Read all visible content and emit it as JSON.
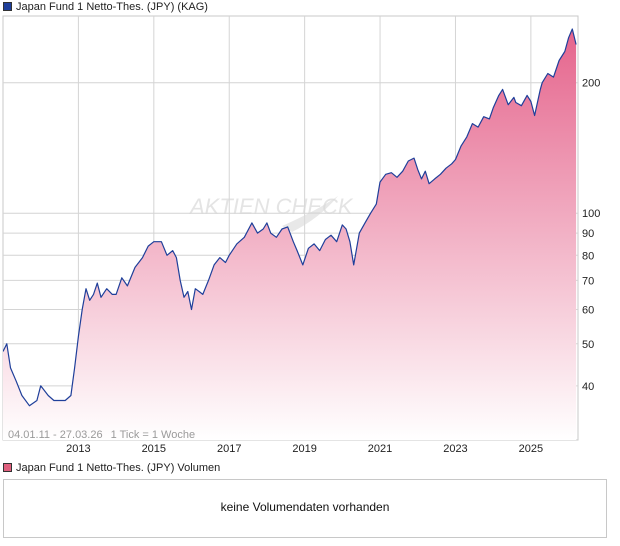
{
  "chart_data": {
    "type": "area",
    "title": "Japan Fund 1 Netto-Thes. (JPY) (KAG)",
    "scale": "log",
    "ylim": [
      30,
      285
    ],
    "xlim": [
      2011.0,
      2026.25
    ],
    "y_ticks": [
      40,
      50,
      60,
      70,
      80,
      90,
      100,
      200
    ],
    "x_ticks": [
      {
        "label": "2013",
        "x": 2013
      },
      {
        "label": "2015",
        "x": 2015
      },
      {
        "label": "2017",
        "x": 2017
      },
      {
        "label": "2019",
        "x": 2019
      },
      {
        "label": "2021",
        "x": 2021
      },
      {
        "label": "2023",
        "x": 2023
      },
      {
        "label": "2025",
        "x": 2025
      }
    ],
    "range_label": "04.01.11 - 27.03.26",
    "tick_label": "1 Tick = 1 Woche",
    "watermark": "AKTIEN CHECK",
    "grid": true,
    "colors": {
      "line": "#1f3f9a",
      "fill_top": "#e5648c",
      "fill_bottom": "#ffffff",
      "grid": "#d4d4d4"
    },
    "series": [
      {
        "x": [
          2011.0,
          2011.1,
          2011.2,
          2011.35,
          2011.5,
          2011.7,
          2011.9,
          2012.0,
          2012.2,
          2012.35,
          2012.5,
          2012.65,
          2012.8,
          2012.9,
          2013.0,
          2013.1,
          2013.2,
          2013.3,
          2013.4,
          2013.5,
          2013.6,
          2013.75,
          2013.9,
          2014.0,
          2014.15,
          2014.3,
          2014.5,
          2014.7,
          2014.85,
          2015.0,
          2015.2,
          2015.35,
          2015.5,
          2015.6,
          2015.7,
          2015.8,
          2015.9,
          2016.0,
          2016.1,
          2016.2,
          2016.3,
          2016.45,
          2016.6,
          2016.75,
          2016.9,
          2017.0,
          2017.2,
          2017.4,
          2017.6,
          2017.75,
          2017.9,
          2018.0,
          2018.1,
          2018.25,
          2018.4,
          2018.55,
          2018.7,
          2018.8,
          2018.95,
          2019.1,
          2019.25,
          2019.4,
          2019.55,
          2019.7,
          2019.85,
          2020.0,
          2020.1,
          2020.2,
          2020.3,
          2020.45,
          2020.6,
          2020.75,
          2020.9,
          2021.0,
          2021.15,
          2021.3,
          2021.45,
          2021.6,
          2021.75,
          2021.9,
          2022.0,
          2022.1,
          2022.2,
          2022.3,
          2022.45,
          2022.6,
          2022.75,
          2022.9,
          2023.0,
          2023.15,
          2023.3,
          2023.45,
          2023.6,
          2023.75,
          2023.9,
          2024.0,
          2024.15,
          2024.25,
          2024.4,
          2024.55,
          2024.6,
          2024.75,
          2024.9,
          2025.0,
          2025.1,
          2025.25,
          2025.3,
          2025.45,
          2025.6,
          2025.75,
          2025.9,
          2026.0,
          2026.1,
          2026.2
        ],
        "values": [
          48,
          50,
          44,
          41,
          38,
          36,
          37,
          40,
          38,
          37,
          37,
          37,
          38,
          44,
          52,
          60,
          67,
          63,
          65,
          69,
          64,
          67,
          65,
          65,
          71,
          68,
          75,
          79,
          84,
          86,
          86,
          80,
          82,
          79,
          70,
          64,
          66,
          60,
          67,
          66,
          65,
          70,
          76,
          79,
          77,
          80,
          85,
          88,
          95,
          90,
          92,
          95,
          90,
          88,
          92,
          93,
          86,
          82,
          76,
          83,
          85,
          82,
          87,
          89,
          86,
          94,
          92,
          86,
          76,
          90,
          95,
          100,
          105,
          118,
          123,
          124,
          121,
          125,
          132,
          134,
          126,
          120,
          125,
          117,
          120,
          123,
          127,
          130,
          133,
          143,
          150,
          161,
          158,
          167,
          165,
          175,
          187,
          193,
          178,
          185,
          180,
          177,
          187,
          181,
          168,
          193,
          200,
          210,
          206,
          225,
          236,
          254,
          266,
          245
        ]
      }
    ]
  },
  "volume_panel": {
    "title": "Japan Fund 1 Netto-Thes. (JPY) Volumen",
    "message": "keine Volumendaten vorhanden"
  }
}
